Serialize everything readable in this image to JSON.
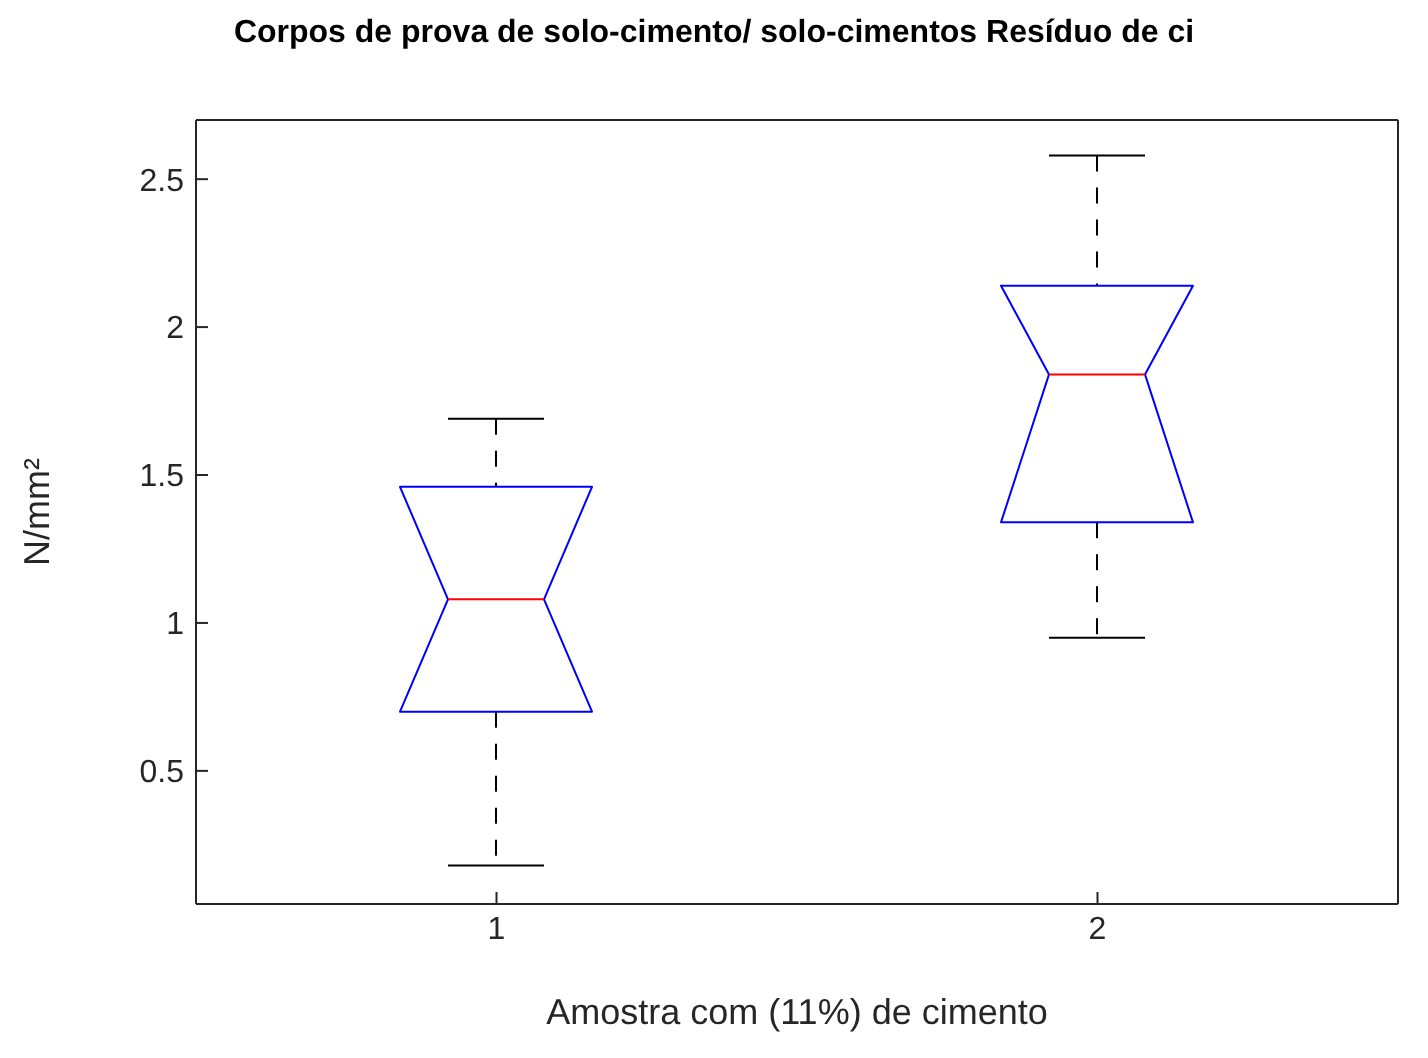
{
  "chart_data": {
    "type": "box",
    "title": "Corpos de prova de solo-cimento/ solo-cimentos Resíduo de ci",
    "xlabel": "Amostra com (11%) de cimento",
    "ylabel": "N/mm²",
    "categories": [
      "1",
      "2"
    ],
    "color": "#0000ff",
    "boxes": [
      {
        "low": 0.18,
        "q1": 0.7,
        "median": 1.08,
        "q3": 1.46,
        "high": 1.69
      },
      {
        "low": 0.95,
        "q1": 1.34,
        "median": 1.84,
        "q3": 2.14,
        "high": 2.58
      }
    ],
    "ylim": [
      0.05,
      2.7
    ],
    "yticks": [
      0.5,
      1,
      1.5,
      2,
      2.5
    ],
    "grid": false
  }
}
